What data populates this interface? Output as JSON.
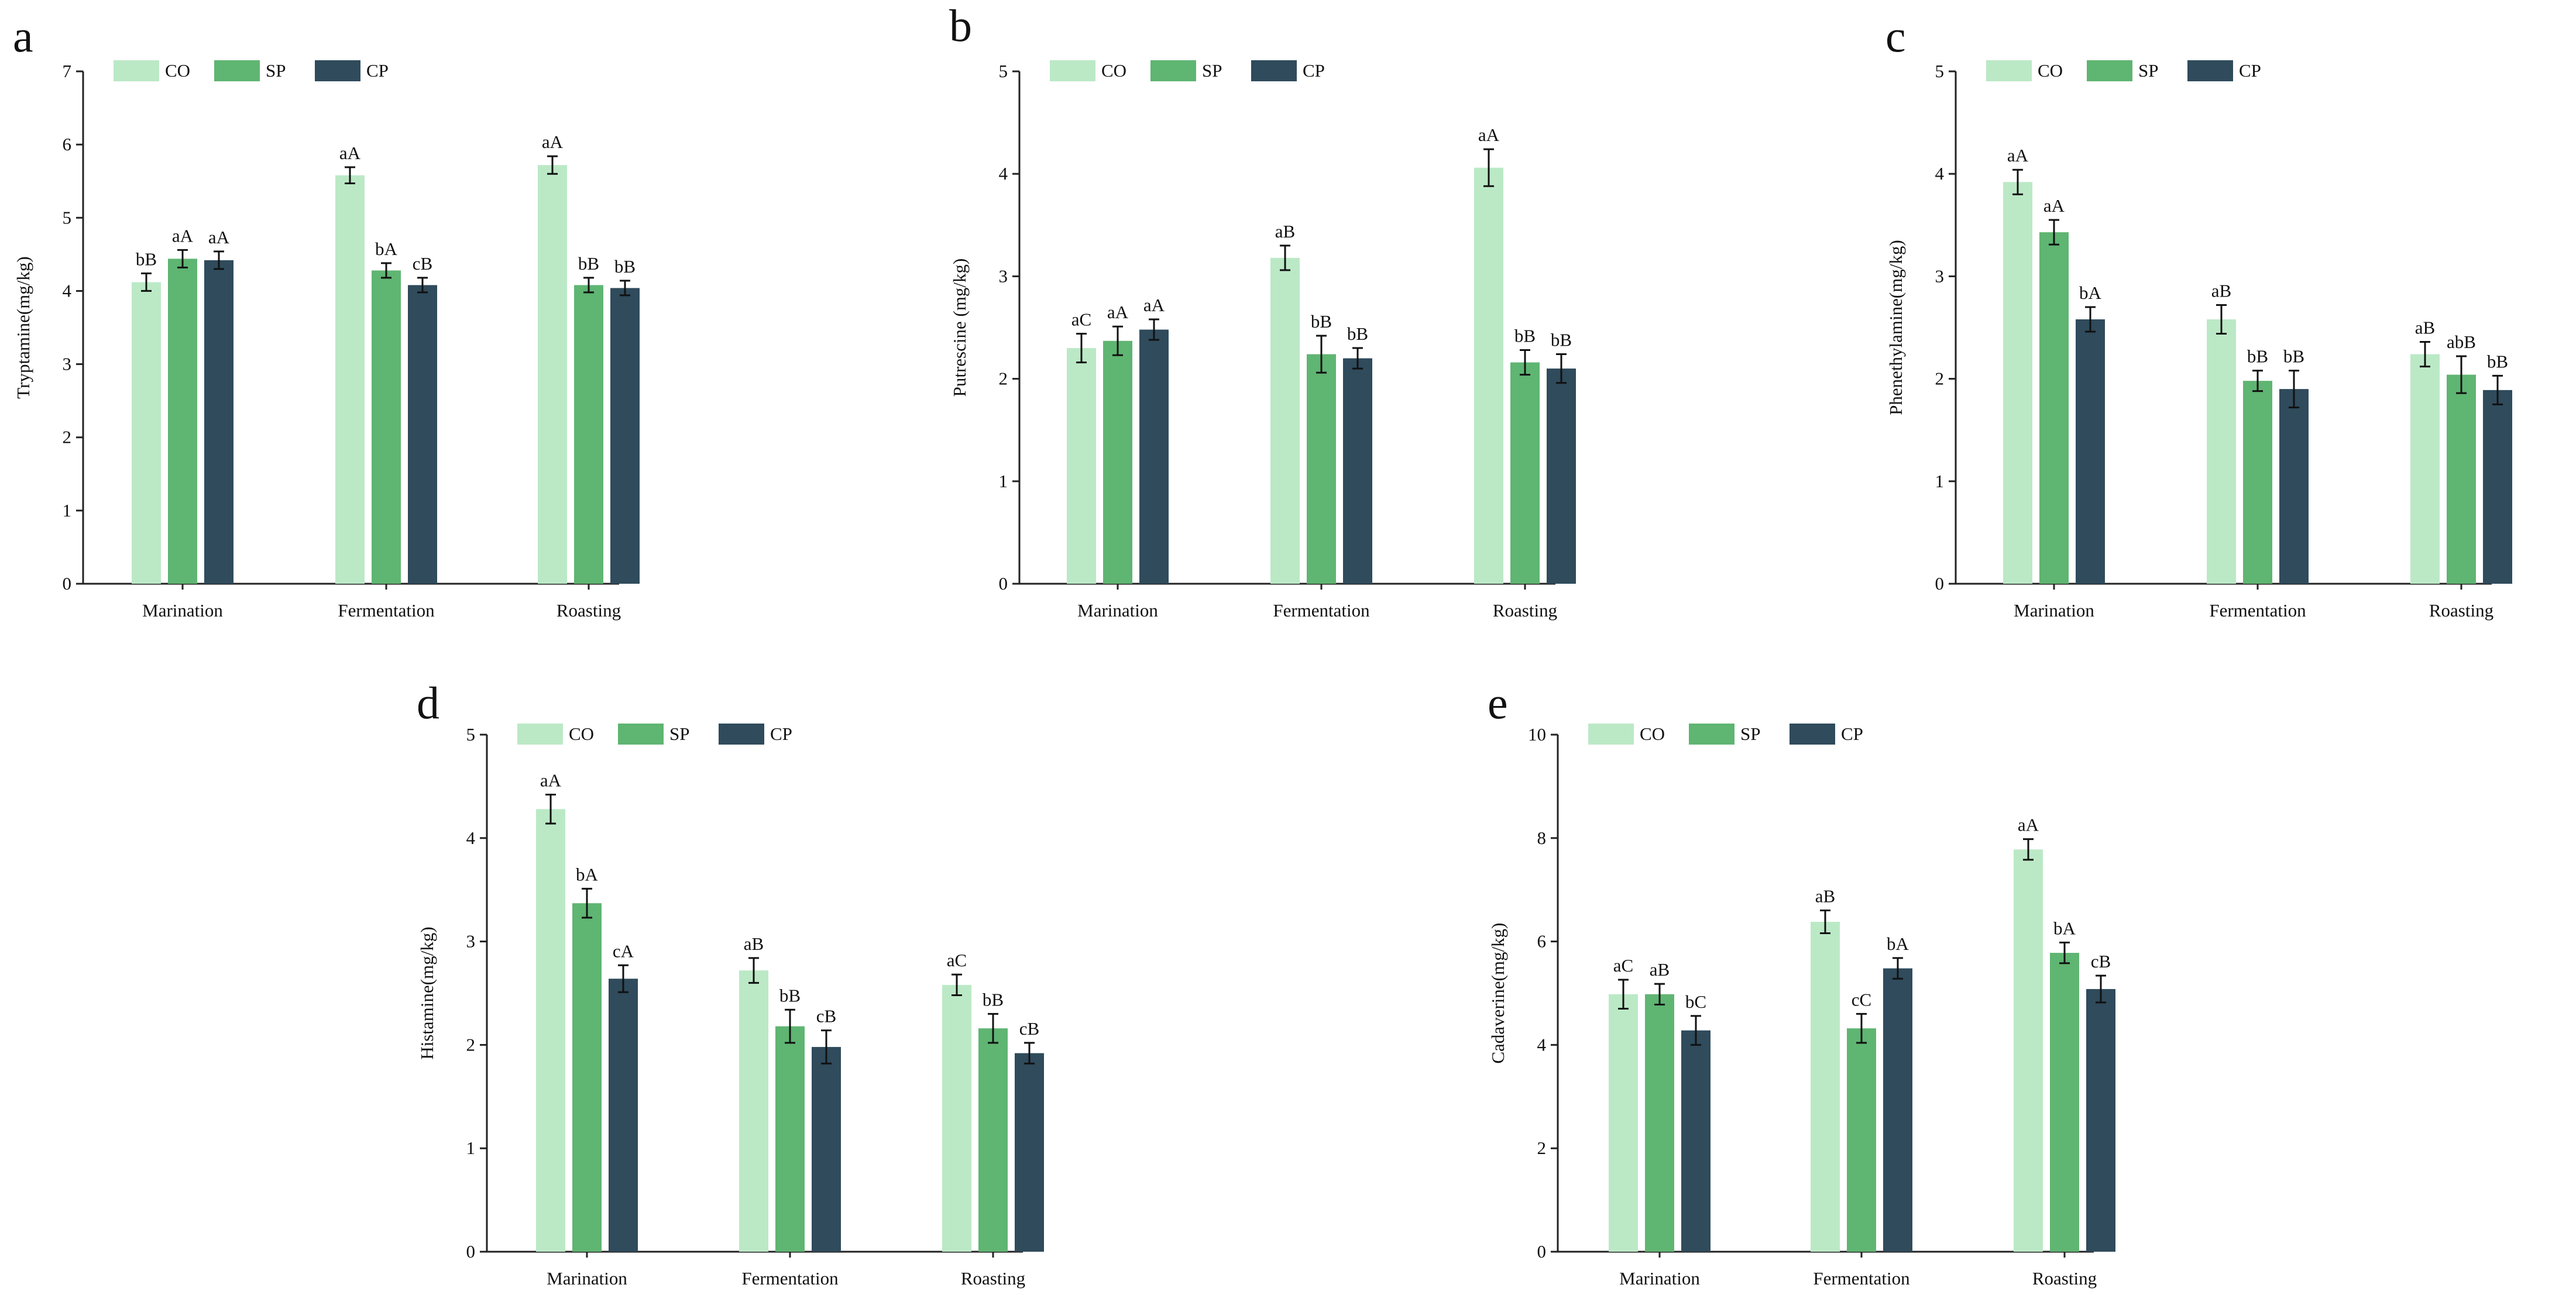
{
  "colors": {
    "CO": "#bbe9c6",
    "SP": "#5fb572",
    "CP": "#2f4b5c"
  },
  "legend": [
    "CO",
    "SP",
    "CP"
  ],
  "chart_data": [
    {
      "panel": "a",
      "type": "bar",
      "ylabel": "Tryptamine(mg/kg)",
      "ylim": [
        0,
        7
      ],
      "yticks": [
        0,
        1,
        2,
        3,
        4,
        5,
        6,
        7
      ],
      "categories": [
        "Marination",
        "Fermentation",
        "Roasting"
      ],
      "series": [
        {
          "name": "CO",
          "values": [
            4.12,
            5.58,
            5.72
          ],
          "errors": [
            0.12,
            0.11,
            0.12
          ],
          "labels": [
            "bB",
            "aA",
            "aA"
          ]
        },
        {
          "name": "SP",
          "values": [
            4.44,
            4.28,
            4.08
          ],
          "errors": [
            0.12,
            0.1,
            0.1
          ],
          "labels": [
            "aA",
            "bA",
            "bB"
          ]
        },
        {
          "name": "CP",
          "values": [
            4.42,
            4.08,
            4.04
          ],
          "errors": [
            0.12,
            0.1,
            0.1
          ],
          "labels": [
            "aA",
            "cB",
            "bB"
          ]
        }
      ]
    },
    {
      "panel": "b",
      "type": "bar",
      "ylabel": "Putrescine (mg/kg)",
      "ylim": [
        0,
        5
      ],
      "yticks": [
        0,
        1,
        2,
        3,
        4,
        5
      ],
      "categories": [
        "Marination",
        "Fermentation",
        "Roasting"
      ],
      "series": [
        {
          "name": "CO",
          "values": [
            2.3,
            3.18,
            4.06
          ],
          "errors": [
            0.14,
            0.12,
            0.18
          ],
          "labels": [
            "aC",
            "aB",
            "aA"
          ]
        },
        {
          "name": "SP",
          "values": [
            2.37,
            2.24,
            2.16
          ],
          "errors": [
            0.14,
            0.18,
            0.12
          ],
          "labels": [
            "aA",
            "bB",
            "bB"
          ]
        },
        {
          "name": "CP",
          "values": [
            2.48,
            2.2,
            2.1
          ],
          "errors": [
            0.1,
            0.1,
            0.14
          ],
          "labels": [
            "aA",
            "bB",
            "bB"
          ]
        }
      ]
    },
    {
      "panel": "c",
      "type": "bar",
      "ylabel": "Phenethylamine(mg/kg)",
      "ylim": [
        0,
        5
      ],
      "yticks": [
        0,
        1,
        2,
        3,
        4,
        5
      ],
      "categories": [
        "Marination",
        "Fermentation",
        "Roasting"
      ],
      "series": [
        {
          "name": "CO",
          "values": [
            3.92,
            2.58,
            2.24
          ],
          "errors": [
            0.12,
            0.14,
            0.12
          ],
          "labels": [
            "aA",
            "aB",
            "aB"
          ]
        },
        {
          "name": "SP",
          "values": [
            3.43,
            1.98,
            2.04
          ],
          "errors": [
            0.12,
            0.1,
            0.18
          ],
          "labels": [
            "aA",
            "bB",
            "abB"
          ]
        },
        {
          "name": "CP",
          "values": [
            2.58,
            1.9,
            1.89
          ],
          "errors": [
            0.12,
            0.18,
            0.14
          ],
          "labels": [
            "bA",
            "bB",
            "bB"
          ]
        }
      ]
    },
    {
      "panel": "d",
      "type": "bar",
      "ylabel": "Histamine(mg/kg)",
      "ylim": [
        0,
        5
      ],
      "yticks": [
        0,
        1,
        2,
        3,
        4,
        5
      ],
      "categories": [
        "Marination",
        "Fermentation",
        "Roasting"
      ],
      "series": [
        {
          "name": "CO",
          "values": [
            4.28,
            2.72,
            2.58
          ],
          "errors": [
            0.14,
            0.12,
            0.1
          ],
          "labels": [
            "aA",
            "aB",
            "aC"
          ]
        },
        {
          "name": "SP",
          "values": [
            3.37,
            2.18,
            2.16
          ],
          "errors": [
            0.14,
            0.16,
            0.14
          ],
          "labels": [
            "bA",
            "bB",
            "bB"
          ]
        },
        {
          "name": "CP",
          "values": [
            2.64,
            1.98,
            1.92
          ],
          "errors": [
            0.13,
            0.16,
            0.1
          ],
          "labels": [
            "cA",
            "cB",
            "cB"
          ]
        }
      ]
    },
    {
      "panel": "e",
      "type": "bar",
      "ylabel": "Cadaverine(mg/kg)",
      "ylim": [
        0,
        10
      ],
      "yticks": [
        0,
        2,
        4,
        6,
        8,
        10
      ],
      "categories": [
        "Marination",
        "Fermentation",
        "Roasting"
      ],
      "series": [
        {
          "name": "CO",
          "values": [
            4.98,
            6.38,
            7.78
          ],
          "errors": [
            0.28,
            0.22,
            0.2
          ],
          "labels": [
            "aC",
            "aB",
            "aA"
          ]
        },
        {
          "name": "SP",
          "values": [
            4.98,
            4.32,
            5.78
          ],
          "errors": [
            0.2,
            0.28,
            0.2
          ],
          "labels": [
            "aB",
            "cC",
            "bA"
          ]
        },
        {
          "name": "CP",
          "values": [
            4.28,
            5.48,
            5.08
          ],
          "errors": [
            0.28,
            0.2,
            0.26
          ],
          "labels": [
            "bC",
            "bA",
            "cB"
          ]
        }
      ]
    }
  ]
}
